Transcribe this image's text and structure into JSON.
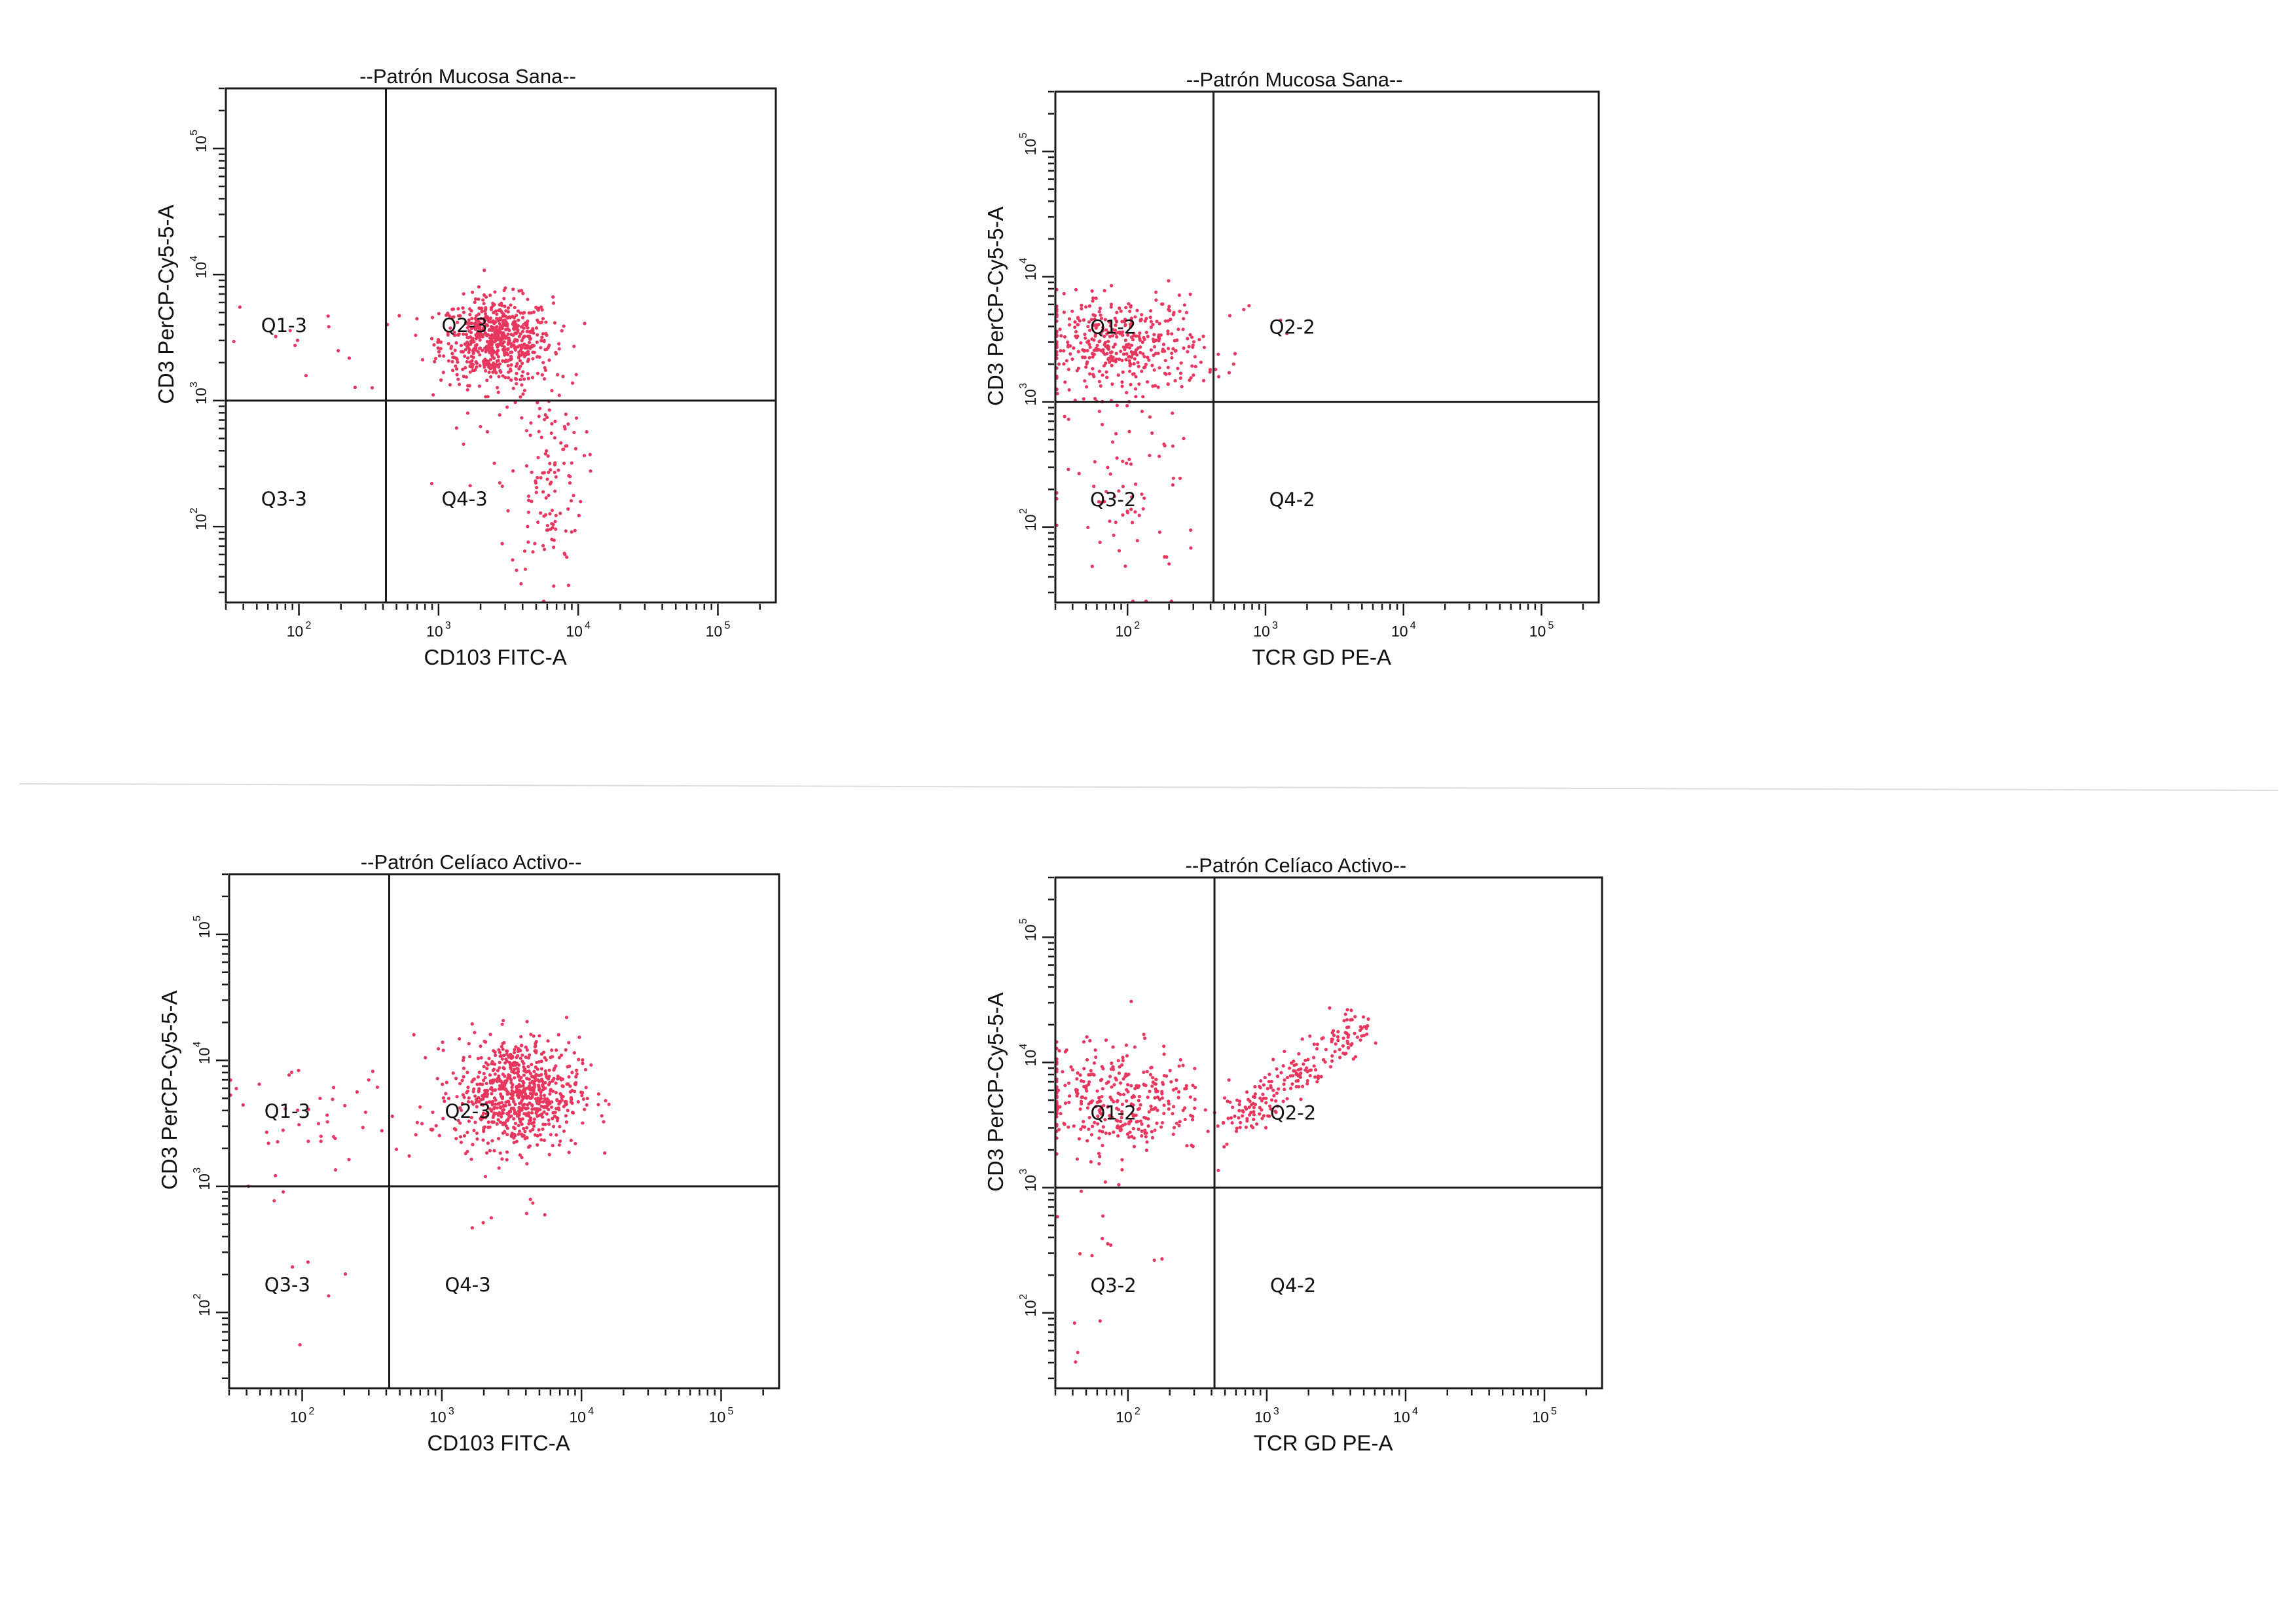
{
  "colors": {
    "events": "#e8375e",
    "ink": "#1a1a1a",
    "background": "#ffffff"
  },
  "chart_data": [
    {
      "type": "scatter",
      "title": "--Patrón Mucosa Sana--",
      "xlabel": "CD103 FITC-A",
      "ylabel": "CD3 PerCP-Cy5-5-A",
      "xscale": "log",
      "yscale": "log",
      "xlim": [
        30,
        260000
      ],
      "ylim": [
        25,
        300000
      ],
      "xticks": [
        100,
        1000,
        10000,
        100000
      ],
      "yticks": [
        100,
        1000,
        10000,
        100000
      ],
      "gate": {
        "x": 420,
        "y": 1000
      },
      "quadrants": [
        "Q1-3",
        "Q2-3",
        "Q3-3",
        "Q4-3"
      ],
      "populations": [
        {
          "cx": 2600,
          "cy": 3000,
          "sx": 0.2,
          "sy": 0.17,
          "n": 650
        },
        {
          "cx": 6000,
          "cy": 250,
          "sx": 0.13,
          "sy": 0.45,
          "n": 130
        },
        {
          "cx": 120,
          "cy": 2600,
          "sx": 0.3,
          "sy": 0.17,
          "n": 14
        },
        {
          "cx": 1800,
          "cy": 600,
          "sx": 0.25,
          "sy": 0.3,
          "n": 12
        }
      ]
    },
    {
      "type": "scatter",
      "title": "--Patrón Mucosa Sana--",
      "xlabel": "TCR GD PE-A",
      "ylabel": "CD3 PerCP-Cy5-5-A",
      "xscale": "log",
      "yscale": "log",
      "xlim": [
        30,
        260000
      ],
      "ylim": [
        25,
        300000
      ],
      "xticks": [
        100,
        1000,
        10000,
        100000
      ],
      "yticks": [
        100,
        1000,
        10000,
        100000
      ],
      "gate": {
        "x": 420,
        "y": 1000
      },
      "quadrants": [
        "Q1-2",
        "Q2-2",
        "Q3-2",
        "Q4-2"
      ],
      "populations": [
        {
          "cx": 90,
          "cy": 2800,
          "sx": 0.3,
          "sy": 0.2,
          "n": 420
        },
        {
          "cx": 110,
          "cy": 180,
          "sx": 0.25,
          "sy": 0.4,
          "n": 70
        },
        {
          "cx": 900,
          "cy": 3500,
          "sx": 0.25,
          "sy": 0.25,
          "n": 5
        }
      ]
    },
    {
      "type": "scatter",
      "title": "--Patrón Celíaco Activo--",
      "xlabel": "CD103 FITC-A",
      "ylabel": "CD3 PerCP-Cy5-5-A",
      "xscale": "log",
      "yscale": "log",
      "xlim": [
        30,
        260000
      ],
      "ylim": [
        25,
        300000
      ],
      "xticks": [
        100,
        1000,
        10000,
        100000
      ],
      "yticks": [
        100,
        1000,
        10000,
        100000
      ],
      "gate": {
        "x": 420,
        "y": 1000
      },
      "quadrants": [
        "Q1-3",
        "Q2-3",
        "Q3-3",
        "Q4-3"
      ],
      "populations": [
        {
          "cx": 3500,
          "cy": 5500,
          "sx": 0.22,
          "sy": 0.22,
          "n": 760
        },
        {
          "cx": 140,
          "cy": 3800,
          "sx": 0.38,
          "sy": 0.2,
          "n": 45
        },
        {
          "cx": 70,
          "cy": 300,
          "sx": 0.25,
          "sy": 0.35,
          "n": 10
        },
        {
          "cx": 2000,
          "cy": 700,
          "sx": 0.35,
          "sy": 0.2,
          "n": 8
        }
      ]
    },
    {
      "type": "scatter",
      "title": "--Patrón Celíaco Activo--",
      "xlabel": "TCR GD PE-A",
      "ylabel": "CD3 PerCP-Cy5-5-A",
      "xscale": "log",
      "yscale": "log",
      "xlim": [
        30,
        260000
      ],
      "ylim": [
        25,
        300000
      ],
      "xticks": [
        100,
        1000,
        10000,
        100000
      ],
      "yticks": [
        100,
        1000,
        10000,
        100000
      ],
      "gate": {
        "x": 420,
        "y": 1000
      },
      "quadrants": [
        "Q1-2",
        "Q2-2",
        "Q3-2",
        "Q4-2"
      ],
      "populations": [
        {
          "cx": 80,
          "cy": 5000,
          "sx": 0.33,
          "sy": 0.22,
          "n": 360
        },
        {
          "diagonal": true,
          "x0": 550,
          "y0": 3000,
          "x1": 5200,
          "y1": 22000,
          "spread": 0.08,
          "n": 210
        },
        {
          "cx": 60,
          "cy": 220,
          "sx": 0.25,
          "sy": 0.4,
          "n": 14
        }
      ]
    }
  ]
}
